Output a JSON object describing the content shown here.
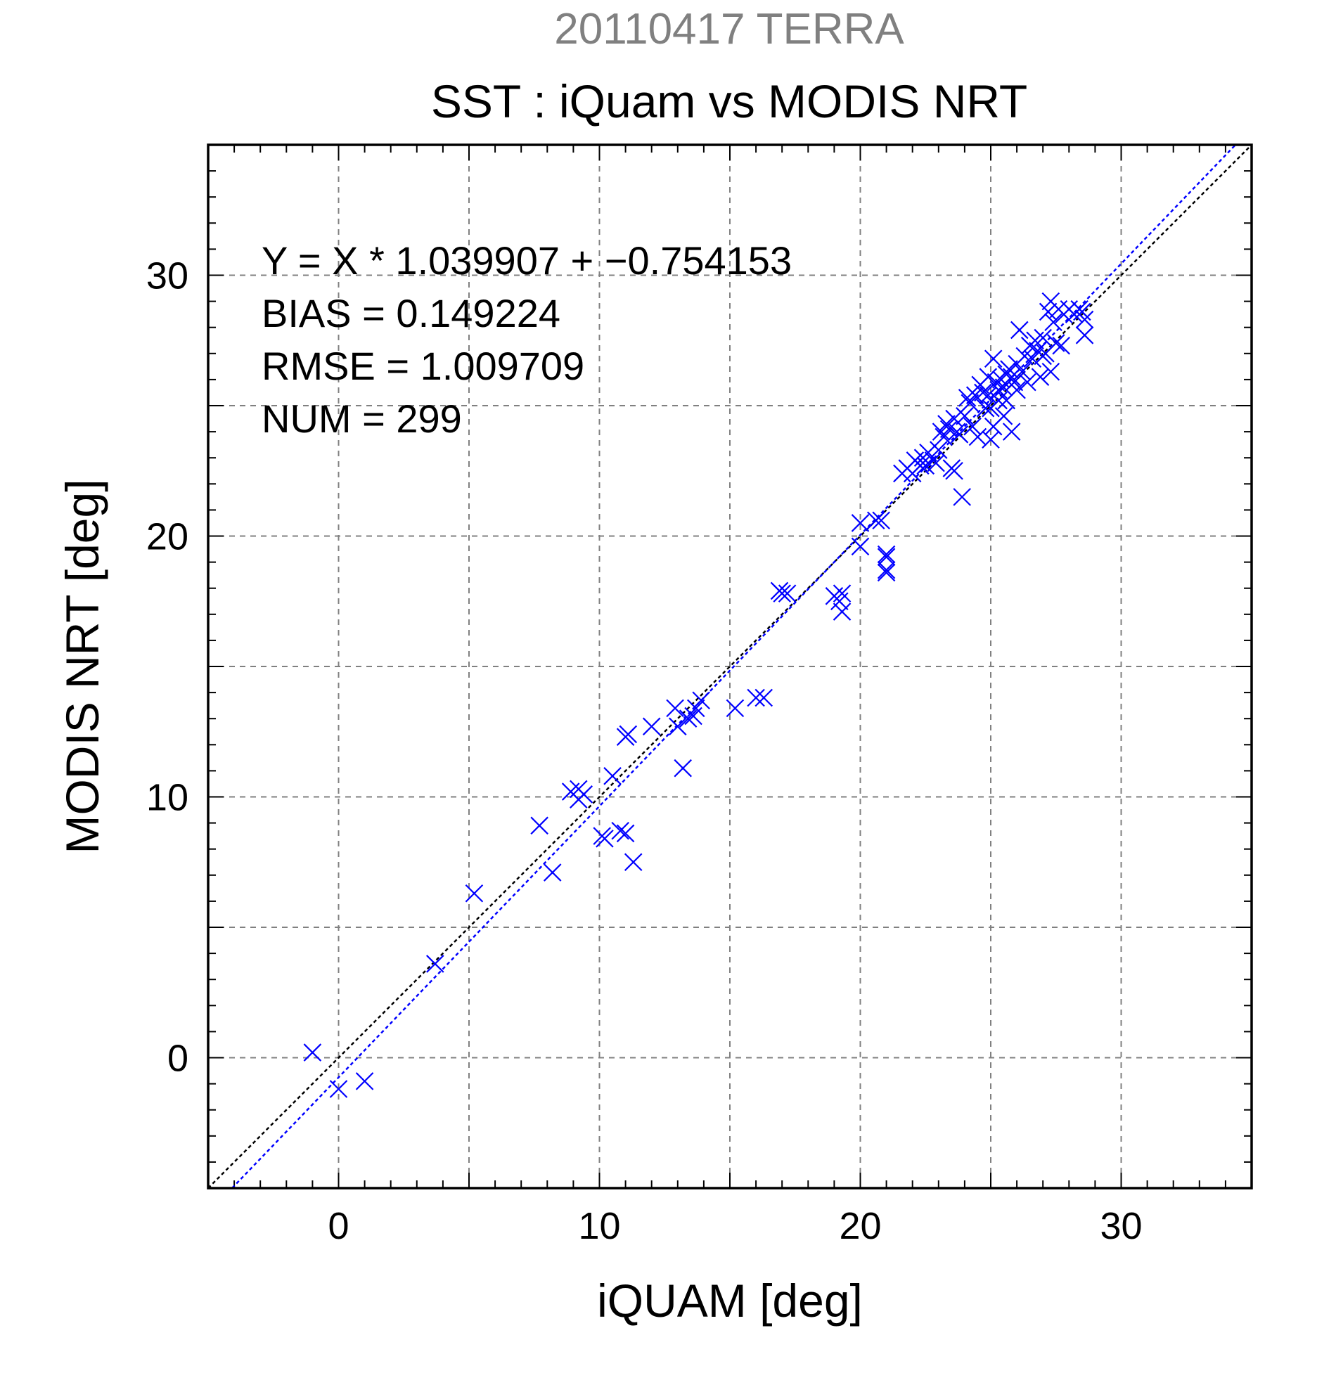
{
  "chart_data": {
    "type": "scatter",
    "supertitle": "20110417 TERRA",
    "title": "SST : iQuam vs MODIS NRT",
    "xlabel": "iQUAM [deg]",
    "ylabel": "MODIS NRT [deg]",
    "xlim": [
      -5,
      35
    ],
    "ylim": [
      -5,
      35
    ],
    "xticks": [
      0,
      10,
      20,
      30
    ],
    "yticks": [
      0,
      10,
      20,
      30
    ],
    "xtick_labels": [
      "0",
      "10",
      "20",
      "30"
    ],
    "ytick_labels": [
      "0",
      "10",
      "20",
      "30"
    ],
    "grid": true,
    "stats": [
      "Y = X * 1.039907 + −0.754153",
      "BIAS = 0.149224",
      "RMSE = 1.009709",
      "NUM = 299"
    ],
    "marker_color": "#0000ff",
    "lines": [
      {
        "role": "one-to-one",
        "slope": 1.0,
        "intercept": 0.0,
        "color": "#000000",
        "style": "dotted"
      },
      {
        "role": "fit",
        "slope": 1.039907,
        "intercept": -0.754153,
        "color": "#0000ff",
        "style": "dotted"
      }
    ],
    "series": [
      {
        "values": [
          [
            -1.0,
            0.2
          ],
          [
            0.0,
            -1.2
          ],
          [
            1.0,
            -0.9
          ],
          [
            3.7,
            3.6
          ],
          [
            5.2,
            6.3
          ],
          [
            7.7,
            8.9
          ],
          [
            8.2,
            7.1
          ],
          [
            8.9,
            10.2
          ],
          [
            9.2,
            9.9
          ],
          [
            9.2,
            10.3
          ],
          [
            9.4,
            10.1
          ],
          [
            10.1,
            8.5
          ],
          [
            10.2,
            8.4
          ],
          [
            10.5,
            10.8
          ],
          [
            10.8,
            8.7
          ],
          [
            11.0,
            8.6
          ],
          [
            11.3,
            7.5
          ],
          [
            11.0,
            12.3
          ],
          [
            11.1,
            12.4
          ],
          [
            12.0,
            12.7
          ],
          [
            12.9,
            13.4
          ],
          [
            13.0,
            12.7
          ],
          [
            13.2,
            11.1
          ],
          [
            13.4,
            13.0
          ],
          [
            13.6,
            13.1
          ],
          [
            13.7,
            13.4
          ],
          [
            13.9,
            13.7
          ],
          [
            15.2,
            13.4
          ],
          [
            16.0,
            13.8
          ],
          [
            16.3,
            13.8
          ],
          [
            16.9,
            17.9
          ],
          [
            17.0,
            17.8
          ],
          [
            17.2,
            17.8
          ],
          [
            19.0,
            17.7
          ],
          [
            19.2,
            17.5
          ],
          [
            19.3,
            17.1
          ],
          [
            19.3,
            17.8
          ],
          [
            20.0,
            19.6
          ],
          [
            20.0,
            20.5
          ],
          [
            20.6,
            20.6
          ],
          [
            20.8,
            20.6
          ],
          [
            21.0,
            19.2
          ],
          [
            21.0,
            19.3
          ],
          [
            21.0,
            18.6
          ],
          [
            21.0,
            18.7
          ],
          [
            21.6,
            22.4
          ],
          [
            21.8,
            22.6
          ],
          [
            22.0,
            22.4
          ],
          [
            22.1,
            22.9
          ],
          [
            22.3,
            22.7
          ],
          [
            22.4,
            23.0
          ],
          [
            22.5,
            22.7
          ],
          [
            22.6,
            23.2
          ],
          [
            22.8,
            22.9
          ],
          [
            22.9,
            22.8
          ],
          [
            23.0,
            23.3
          ],
          [
            23.1,
            24.0
          ],
          [
            23.2,
            23.8
          ],
          [
            23.3,
            24.3
          ],
          [
            23.4,
            24.1
          ],
          [
            23.5,
            22.6
          ],
          [
            23.6,
            22.5
          ],
          [
            23.6,
            24.5
          ],
          [
            23.7,
            24.0
          ],
          [
            23.8,
            23.9
          ],
          [
            23.9,
            21.5
          ],
          [
            24.0,
            24.6
          ],
          [
            24.1,
            25.3
          ],
          [
            24.2,
            25.1
          ],
          [
            24.3,
            24.2
          ],
          [
            24.4,
            25.4
          ],
          [
            24.5,
            23.8
          ],
          [
            24.6,
            25.8
          ],
          [
            24.7,
            25.5
          ],
          [
            24.8,
            24.9
          ],
          [
            24.9,
            26.1
          ],
          [
            24.9,
            25.4
          ],
          [
            25.0,
            23.7
          ],
          [
            25.0,
            24.9
          ],
          [
            25.1,
            26.8
          ],
          [
            25.1,
            24.2
          ],
          [
            25.2,
            25.9
          ],
          [
            25.3,
            25.2
          ],
          [
            25.3,
            25.6
          ],
          [
            25.4,
            26.0
          ],
          [
            25.5,
            25.7
          ],
          [
            25.5,
            24.6
          ],
          [
            25.6,
            25.2
          ],
          [
            25.6,
            26.2
          ],
          [
            25.7,
            26.4
          ],
          [
            25.8,
            26.1
          ],
          [
            25.8,
            24.0
          ],
          [
            25.9,
            25.9
          ],
          [
            26.0,
            26.6
          ],
          [
            26.0,
            25.6
          ],
          [
            26.1,
            27.9
          ],
          [
            26.2,
            26.3
          ],
          [
            26.3,
            26.9
          ],
          [
            26.4,
            25.9
          ],
          [
            26.5,
            27.3
          ],
          [
            26.6,
            26.8
          ],
          [
            26.7,
            27.5
          ],
          [
            26.8,
            27.1
          ],
          [
            26.9,
            26.1
          ],
          [
            27.0,
            27.6
          ],
          [
            27.0,
            26.9
          ],
          [
            27.1,
            27.0
          ],
          [
            27.2,
            28.6
          ],
          [
            27.3,
            29.0
          ],
          [
            27.3,
            26.3
          ],
          [
            27.4,
            28.2
          ],
          [
            27.5,
            27.4
          ],
          [
            27.6,
            28.7
          ],
          [
            27.7,
            27.3
          ],
          [
            27.8,
            28.5
          ],
          [
            28.0,
            28.7
          ],
          [
            28.2,
            28.5
          ],
          [
            28.4,
            28.7
          ],
          [
            28.5,
            28.6
          ],
          [
            28.6,
            28.3
          ],
          [
            28.6,
            27.7
          ]
        ]
      }
    ]
  }
}
